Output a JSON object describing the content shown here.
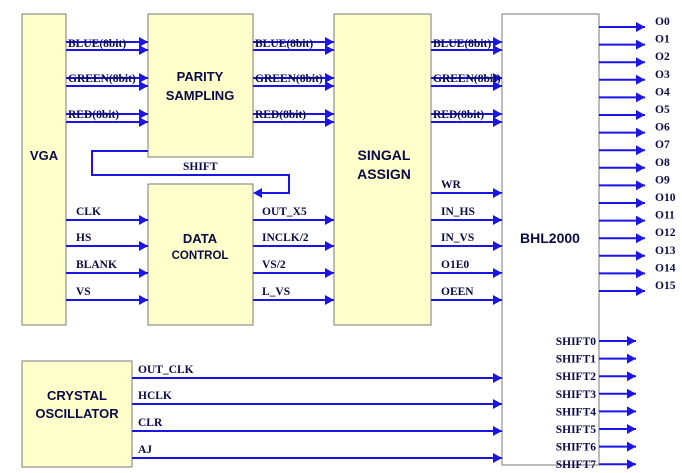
{
  "colors": {
    "block_fill": "#ffffcc",
    "block_stroke": "#7a7a7a",
    "wire": "#1a14e6",
    "text": "#0a0a46"
  },
  "blocks": {
    "vga": "VGA",
    "parity_1": "PARITY",
    "parity_2": "SAMPLING",
    "data_1": "DATA",
    "data_2": "CONTROL",
    "singal_1": "SINGAL",
    "singal_2": "ASSIGN",
    "bhl": "BHL2000",
    "crystal_1": "CRYSTAL",
    "crystal_2": "OSCILLATOR"
  },
  "signals": {
    "vga_parity": [
      "BLUE(8bit)",
      "GREEN(8bit)",
      "RED(8bit)"
    ],
    "parity_singal": [
      "BLUE(8bit)",
      "GREEN(8bit)",
      "RED(8bit)"
    ],
    "singal_bhl_rgb": [
      "BLUE(8bit)",
      "GREEN(8bit)",
      "RED(8bit)"
    ],
    "vga_data": [
      "CLK",
      "HS",
      "BLANK",
      "VS"
    ],
    "data_singal": [
      "OUT_X5",
      "INCLK/2",
      "VS/2",
      "L_VS"
    ],
    "singal_bhl_ctrl": [
      "WR",
      "IN_HS",
      "IN_VS",
      "O1E0",
      "OEEN"
    ],
    "shift_feedback": "SHIFT",
    "crystal_out": [
      "OUT_CLK",
      "HCLK",
      "CLR",
      "AJ"
    ],
    "outputs_o": [
      "O0",
      "O1",
      "O2",
      "O3",
      "O4",
      "O5",
      "O6",
      "O7",
      "O8",
      "O9",
      "O10",
      "O11",
      "O12",
      "O13",
      "O14",
      "O15"
    ],
    "outputs_shift": [
      "SHIFT0",
      "SHIFT1",
      "SHIFT2",
      "SHIFT3",
      "SHIFT4",
      "SHIFT5",
      "SHIFT6",
      "SHIFT7"
    ]
  }
}
